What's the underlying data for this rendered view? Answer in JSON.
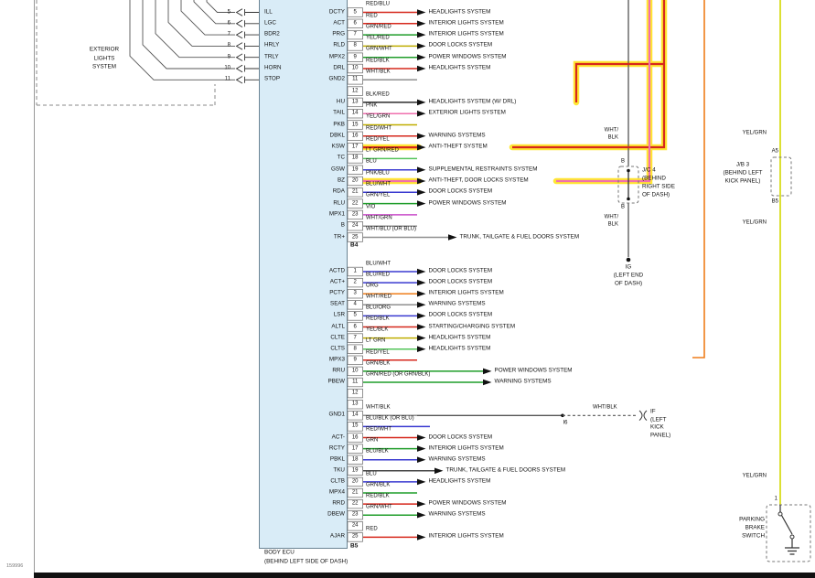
{
  "palette": {
    "RED": "#d6281c",
    "GRN": "#1f9d2a",
    "BLU": "#3a3ad0",
    "YEL": "#bfae00",
    "PNK": "#f06fae",
    "VIO": "#c94ec9",
    "ORG": "#ef7d1a",
    "BLK": "#2b2b2b",
    "WHT": "#8f8f8f",
    "LT GRN": "#53c45a",
    "HIGHLIGHT": "#ffe633",
    "YELGRN": "#d9dc1c"
  },
  "exterior_box": {
    "lines": [
      "EXTERIOR",
      "LIGHTS",
      "SYSTEM"
    ]
  },
  "left_connector": {
    "pins": [
      "5",
      "6",
      "7",
      "8",
      "9",
      "10",
      "11"
    ]
  },
  "ecu": {
    "name": "BODY ECU",
    "location": "(BEHIND LEFT SIDE OF DASH)"
  },
  "footer": {
    "code": "159996"
  },
  "connectors": [
    {
      "label": "B4",
      "rows": [
        {
          "pin": "5",
          "left_label": "ILL",
          "ecu_label": "DCTY",
          "color": "RED/BLU",
          "dest": "HEADLIGHTS SYSTEM"
        },
        {
          "pin": "6",
          "left_label": "LGC",
          "ecu_label": "ACT",
          "color": "RED",
          "dest": "INTERIOR LIGHTS SYSTEM"
        },
        {
          "pin": "7",
          "left_label": "BDR2",
          "ecu_label": "PRG",
          "color": "GRN/RED",
          "dest": "INTERIOR LIGHTS SYSTEM"
        },
        {
          "pin": "8",
          "left_label": "HRLY",
          "ecu_label": "RLD",
          "color": "YEL/RED",
          "dest": "DOOR LOCKS SYSTEM"
        },
        {
          "pin": "9",
          "left_label": "TRLY",
          "ecu_label": "MPX2",
          "color": "GRN/WHT",
          "dest": "POWER WINDOWS SYSTEM"
        },
        {
          "pin": "10",
          "left_label": "HORN",
          "ecu_label": "DRL",
          "color": "RED/BLK",
          "dest": "HEADLIGHTS SYSTEM"
        },
        {
          "pin": "11",
          "left_label": "STOP",
          "ecu_label": "GND2",
          "color": "WHT/BLK",
          "dest": ""
        },
        {
          "pin": "12",
          "left_label": "",
          "ecu_label": "",
          "color": "",
          "dest": ""
        },
        {
          "pin": "13",
          "left_label": "",
          "ecu_label": "HU",
          "color": "BLK/RED",
          "dest": "HEADLIGHTS SYSTEM (W/ DRL)"
        },
        {
          "pin": "14",
          "left_label": "",
          "ecu_label": "TAIL",
          "color": "PNK",
          "dest": "EXTERIOR LIGHTS SYSTEM"
        },
        {
          "pin": "15",
          "left_label": "",
          "ecu_label": "PKB",
          "color": "YEL/GRN",
          "dest": ""
        },
        {
          "pin": "16",
          "left_label": "",
          "ecu_label": "DBKL",
          "color": "RED/WHT",
          "dest": "WARNING SYSTEMS"
        },
        {
          "pin": "17",
          "left_label": "",
          "ecu_label": "KSW",
          "color": "RED/YEL",
          "dest": "ANTI-THEFT SYSTEM"
        },
        {
          "pin": "18",
          "left_label": "",
          "ecu_label": "TC",
          "color": "LT GRN/RED",
          "dest": ""
        },
        {
          "pin": "19",
          "left_label": "",
          "ecu_label": "GSW",
          "color": "BLU",
          "dest": "SUPPLEMENTAL RESTRAINTS SYSTEM"
        },
        {
          "pin": "20",
          "left_label": "",
          "ecu_label": "BZ",
          "color": "PNK/BLU",
          "dest": "ANTI-THEFT, DOOR LOCKS SYSTEM"
        },
        {
          "pin": "21",
          "left_label": "",
          "ecu_label": "RDA",
          "color": "BLU/WHT",
          "dest": "DOOR LOCKS SYSTEM"
        },
        {
          "pin": "22",
          "left_label": "",
          "ecu_label": "RLU",
          "color": "GRN/YEL",
          "dest": "POWER WINDOWS SYSTEM"
        },
        {
          "pin": "23",
          "left_label": "",
          "ecu_label": "MPX1",
          "color": "VIO",
          "dest": ""
        },
        {
          "pin": "24",
          "left_label": "",
          "ecu_label": "B",
          "color": "WHT/GRN",
          "dest": ""
        },
        {
          "pin": "25",
          "left_label": "",
          "ecu_label": "TR+",
          "color": "WHT/BLU (OR BLU)",
          "dest": "TRUNK, TAILGATE & FUEL DOORS SYSTEM"
        }
      ]
    },
    {
      "label": "B5",
      "rows": [
        {
          "pin": "1",
          "ecu_label": "ACTD",
          "color": "BLU/WHT",
          "dest": "DOOR LOCKS SYSTEM"
        },
        {
          "pin": "2",
          "ecu_label": "ACT+",
          "color": "BLU/RED",
          "dest": "DOOR LOCKS SYSTEM"
        },
        {
          "pin": "3",
          "ecu_label": "PCTY",
          "color": "ORG",
          "dest": "INTERIOR LIGHTS SYSTEM"
        },
        {
          "pin": "4",
          "ecu_label": "SEAT",
          "color": "WHT/RED",
          "dest": "WARNING SYSTEMS"
        },
        {
          "pin": "5",
          "ecu_label": "LSR",
          "color": "BLU/ORG",
          "dest": "DOOR LOCKS SYSTEM"
        },
        {
          "pin": "6",
          "ecu_label": "ALTL",
          "color": "RED/BLK",
          "dest": "STARTING/CHARGING SYSTEM"
        },
        {
          "pin": "7",
          "ecu_label": "CLTE",
          "color": "YEL/BLK",
          "dest": "HEADLIGHTS SYSTEM"
        },
        {
          "pin": "8",
          "ecu_label": "CLTS",
          "color": "LT GRN",
          "dest": "HEADLIGHTS SYSTEM"
        },
        {
          "pin": "9",
          "ecu_label": "MPX3",
          "color": "RED/YEL",
          "dest": ""
        },
        {
          "pin": "10",
          "ecu_label": "RRU",
          "color": "GRN/BLK",
          "dest": "POWER WINDOWS SYSTEM"
        },
        {
          "pin": "11",
          "ecu_label": "PBEW",
          "color": "GRN/RED (OR GRN/BLK)",
          "dest": "WARNING SYSTEMS"
        },
        {
          "pin": "12",
          "ecu_label": "",
          "color": "",
          "dest": ""
        },
        {
          "pin": "13",
          "ecu_label": "",
          "color": "",
          "dest": ""
        },
        {
          "pin": "14",
          "ecu_label": "GND1",
          "color": "WHT/BLK",
          "dest": ""
        },
        {
          "pin": "15",
          "ecu_label": "",
          "color": "BLU/BLK (OR BLU)",
          "dest": ""
        },
        {
          "pin": "16",
          "ecu_label": "ACT-",
          "color": "RED/WHT",
          "dest": "DOOR LOCKS SYSTEM"
        },
        {
          "pin": "17",
          "ecu_label": "RCTY",
          "color": "GRN",
          "dest": "INTERIOR LIGHTS SYSTEM"
        },
        {
          "pin": "18",
          "ecu_label": "PBKL",
          "color": "BLU/BLK",
          "dest": "WARNING SYSTEMS"
        },
        {
          "pin": "19",
          "ecu_label": "TKU",
          "color": "",
          "dest": "TRUNK, TAILGATE & FUEL DOORS SYSTEM"
        },
        {
          "pin": "20",
          "ecu_label": "CLTB",
          "color": "BLU",
          "dest": "HEADLIGHTS SYSTEM"
        },
        {
          "pin": "21",
          "ecu_label": "MPX4",
          "color": "GRN/BLK",
          "dest": ""
        },
        {
          "pin": "22",
          "ecu_label": "RRD",
          "color": "RED/BLK",
          "dest": "POWER WINDOWS SYSTEM"
        },
        {
          "pin": "23",
          "ecu_label": "DBEW",
          "color": "GRN/WHT",
          "dest": "WARNING SYSTEMS"
        },
        {
          "pin": "24",
          "ecu_label": "",
          "color": "",
          "dest": ""
        },
        {
          "pin": "25",
          "ecu_label": "AJAR",
          "color": "RED",
          "dest": "INTERIOR LIGHTS SYSTEM"
        }
      ]
    }
  ],
  "annotations": {
    "jc4": {
      "top_wire": [
        "WHT/",
        "BLK"
      ],
      "top_pin": "B",
      "name_lines": [
        "J/C 4",
        "(BEHIND",
        "RIGHT SIDE",
        "OF DASH)"
      ],
      "bottom_pin": "B",
      "bottom_wire": [
        "WHT/",
        "BLK"
      ],
      "ground_lines": [
        "IG",
        "(LEFT END",
        "OF DASH)"
      ]
    },
    "jb3": {
      "top_pin": "A5",
      "name_lines": [
        "J/B 3",
        "(BEHIND LEFT",
        "KICK PANEL)"
      ],
      "bottom_pin": "B5"
    },
    "yelgrn_labels": [
      "YEL/GRN",
      "YEL/GRN",
      "YEL/GRN"
    ],
    "parking_brake": {
      "pin": "1",
      "name_lines": [
        "PARKING",
        "BRAKE",
        "SWITCH"
      ]
    },
    "i6_branch": {
      "junction": "I6",
      "wire2": "WHT/BLK",
      "dest_lines": [
        "IF",
        "(LEFT",
        "KICK",
        "PANEL)"
      ]
    }
  }
}
